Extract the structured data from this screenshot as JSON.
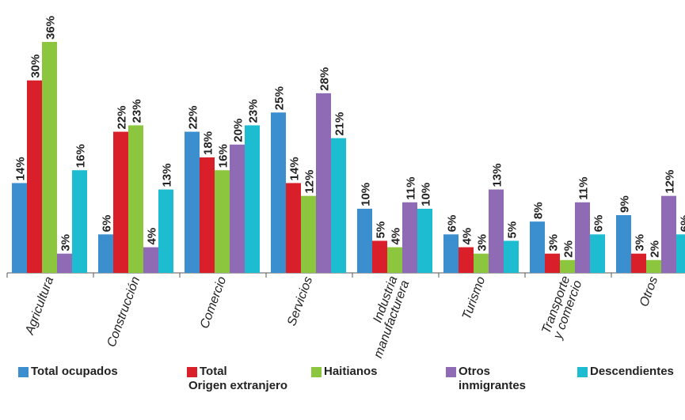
{
  "chart_data": {
    "type": "bar",
    "categories": [
      "Agricultura",
      "Construcción",
      "Comercio",
      "Servicios",
      "Industria manufacturera",
      "Turismo",
      "Transporte y comercio",
      "Otros"
    ],
    "category_labels": [
      [
        "Agricultura"
      ],
      [
        "Construcción"
      ],
      [
        "Comercio"
      ],
      [
        "Servicios"
      ],
      [
        "Industria",
        "manufacturera"
      ],
      [
        "Turismo"
      ],
      [
        "Transporte",
        "y comercio"
      ],
      [
        "Otros"
      ]
    ],
    "series": [
      {
        "name": "Total ocupados",
        "legend_lines": [
          "Total ocupados"
        ],
        "color": "#3b8fce",
        "values": [
          14,
          6,
          22,
          25,
          10,
          6,
          8,
          9
        ]
      },
      {
        "name": "Total Origen extranjero",
        "legend_lines": [
          "Total",
          "Origen extranjero"
        ],
        "color": "#d9202a",
        "values": [
          30,
          22,
          18,
          14,
          5,
          4,
          3,
          3
        ]
      },
      {
        "name": "Haitianos",
        "legend_lines": [
          "Haitianos"
        ],
        "color": "#8cc63f",
        "values": [
          36,
          23,
          16,
          12,
          4,
          3,
          2,
          2
        ]
      },
      {
        "name": "Otros inmigrantes",
        "legend_lines": [
          "Otros",
          "inmigrantes"
        ],
        "color": "#8f6bb5",
        "values": [
          3,
          4,
          20,
          28,
          11,
          13,
          11,
          12
        ]
      },
      {
        "name": "Descendientes",
        "legend_lines": [
          "Descendientes"
        ],
        "color": "#1dbcd0",
        "values": [
          16,
          13,
          23,
          21,
          10,
          5,
          6,
          6
        ]
      }
    ],
    "value_suffix": "%",
    "ylim": [
      0,
      36
    ],
    "grid": false,
    "legend_position": "bottom"
  }
}
